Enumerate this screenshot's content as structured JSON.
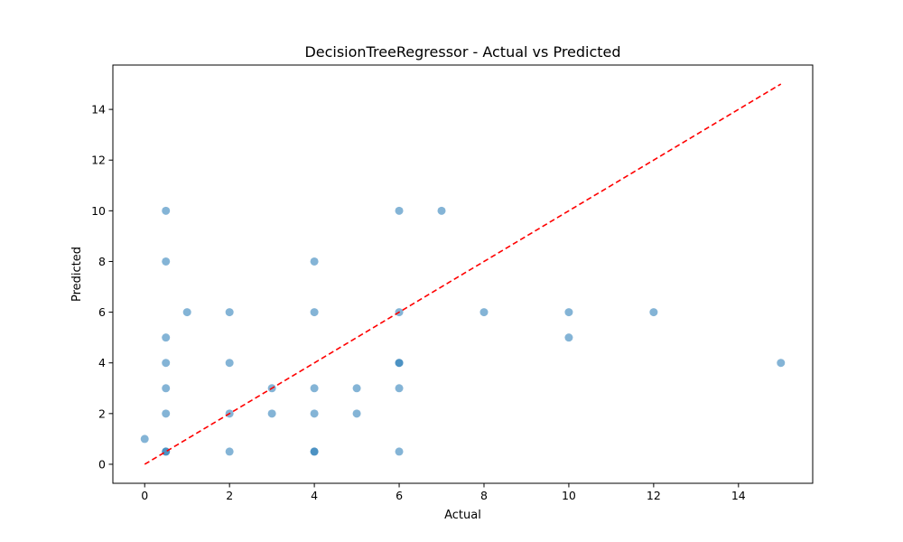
{
  "chart_data": {
    "type": "scatter",
    "title": "DecisionTreeRegressor - Actual vs Predicted",
    "xlabel": "Actual",
    "ylabel": "Predicted",
    "xlim": [
      -0.75,
      15.75
    ],
    "ylim": [
      -0.75,
      15.75
    ],
    "xticks": [
      0,
      2,
      4,
      6,
      8,
      10,
      12,
      14
    ],
    "yticks": [
      0,
      2,
      4,
      6,
      8,
      10,
      12,
      14
    ],
    "grid": false,
    "colors": {
      "points": "#1f77b4",
      "reference_line": "#ff0000"
    },
    "point_alpha": 0.55,
    "reference_line": {
      "from": [
        0,
        0
      ],
      "to": [
        15,
        15
      ],
      "style": "dashed"
    },
    "series": [
      {
        "x": [
          0,
          0.5,
          0.5,
          0.5,
          0.5,
          0.5,
          0.5,
          0.5,
          0.5,
          1,
          2,
          2,
          2,
          2,
          3,
          3,
          4,
          4,
          4,
          4,
          4,
          4,
          5,
          5,
          6,
          6,
          6,
          6,
          6,
          6,
          7,
          8,
          10,
          10,
          12,
          15
        ],
        "y": [
          1,
          0.5,
          2,
          3,
          4,
          5,
          8,
          10,
          0.5,
          6,
          0.5,
          2,
          4,
          6,
          2,
          3,
          0.5,
          2,
          3,
          6,
          8,
          0.5,
          2,
          3,
          0.5,
          3,
          4,
          6,
          10,
          4,
          10,
          6,
          5,
          6,
          6,
          4
        ]
      }
    ]
  }
}
